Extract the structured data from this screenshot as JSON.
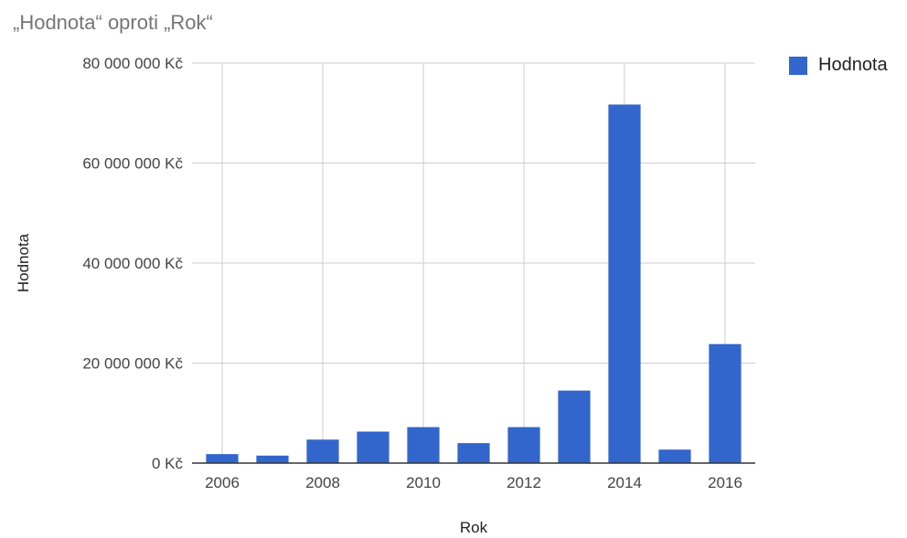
{
  "chart_data": {
    "type": "bar",
    "title": "„Hodnota“ oproti „Rok“",
    "xlabel": "Rok",
    "ylabel": "Hodnota",
    "ylim": [
      0,
      80000000
    ],
    "yticks": [
      0,
      20000000,
      40000000,
      60000000,
      80000000
    ],
    "ytick_labels": [
      "0 Kč",
      "20 000 000 Kč",
      "40 000 000 Kč",
      "60 000 000 Kč",
      "80 000 000 Kč"
    ],
    "xlim": [
      2005.4,
      2016.6
    ],
    "xticks": [
      2006,
      2008,
      2010,
      2012,
      2014,
      2016
    ],
    "xtick_labels": [
      "2006",
      "2008",
      "2010",
      "2012",
      "2014",
      "2016"
    ],
    "x": [
      2006,
      2007,
      2008,
      2009,
      2010,
      2011,
      2012,
      2013,
      2014,
      2015,
      2016
    ],
    "series": [
      {
        "name": "Hodnota",
        "color": "#3366cc",
        "values": [
          1800000,
          1500000,
          4700000,
          6300000,
          7200000,
          4000000,
          7200000,
          14500000,
          71700000,
          2700000,
          23800000
        ]
      }
    ],
    "grid": true,
    "legend_position": "right"
  }
}
